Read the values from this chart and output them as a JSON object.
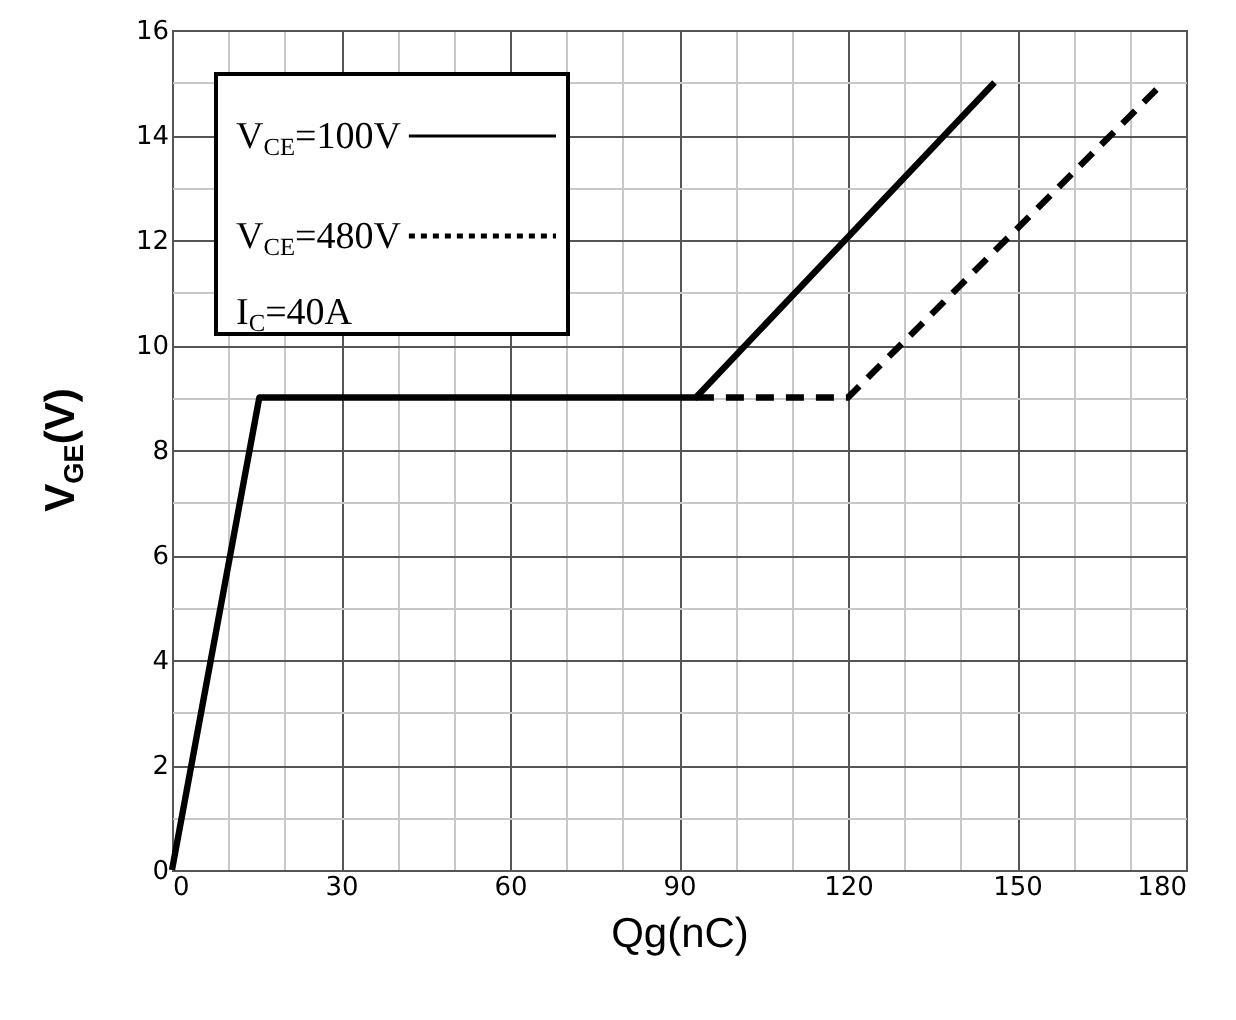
{
  "chart_data": {
    "type": "line",
    "xlabel": "Qg(nC)",
    "ylabel": "V$_{GE}$(V)",
    "xlim": [
      0,
      180
    ],
    "ylim": [
      0,
      16
    ],
    "xticks": [
      0,
      {
        "value": 10,
        "label": null
      },
      {
        "value": 20,
        "label": null
      },
      30,
      {
        "value": 40,
        "label": null
      },
      {
        "value": 50,
        "label": null
      },
      60,
      {
        "value": 70,
        "label": null
      },
      {
        "value": 80,
        "label": null
      },
      90,
      {
        "value": 100,
        "label": null
      },
      {
        "value": 110,
        "label": null
      },
      120,
      {
        "value": 130,
        "label": null
      },
      {
        "value": 140,
        "label": null
      },
      150,
      {
        "value": 160,
        "label": null
      },
      {
        "value": 170,
        "label": null
      },
      180
    ],
    "yticks": [
      0,
      {
        "value": 1,
        "label": null
      },
      2,
      {
        "value": 3,
        "label": null
      },
      4,
      {
        "value": 5,
        "label": null
      },
      6,
      {
        "value": 7,
        "label": null
      },
      8,
      {
        "value": 9,
        "label": null
      },
      10,
      {
        "value": 11,
        "label": null
      },
      12,
      {
        "value": 13,
        "label": null
      },
      14,
      {
        "value": 15,
        "label": null
      },
      16
    ],
    "grid": true,
    "legend": "top left",
    "marker": "none",
    "annotations": [
      "I$_{C}$=40A"
    ],
    "series": [
      {
        "name": "V$_{CE}$=100V",
        "color": "#000000",
        "line_style": "solid",
        "x": [
          0,
          15.5,
          93,
          146
        ],
        "values": [
          0,
          9,
          9,
          15
        ]
      },
      {
        "name": "V$_{CE}$=480V",
        "color": "#000000",
        "line_style": "dashed",
        "x": [
          93,
          120,
          176
        ],
        "values": [
          9,
          9,
          15
        ]
      }
    ]
  }
}
